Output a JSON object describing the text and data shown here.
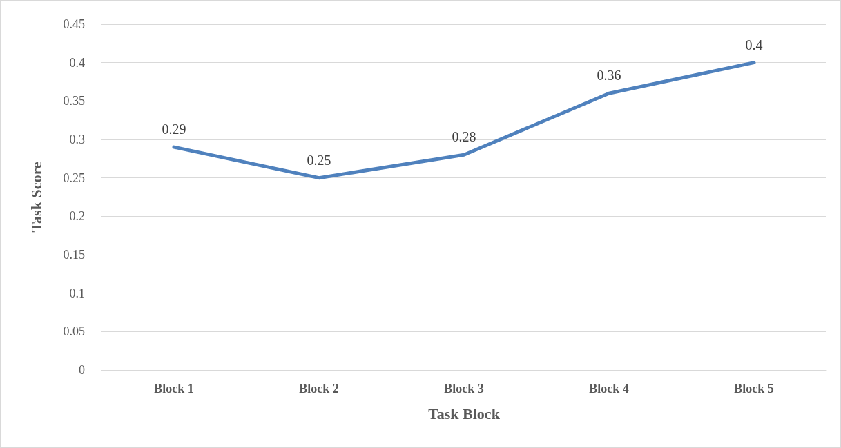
{
  "chart_data": {
    "type": "line",
    "xlabel": "Task Block",
    "ylabel": "Task Score",
    "categories": [
      "Block 1",
      "Block 2",
      "Block 3",
      "Block 4",
      "Block 5"
    ],
    "series": [
      {
        "color": "#4f81bd",
        "values": [
          0.29,
          0.25,
          0.28,
          0.36,
          0.4
        ]
      }
    ],
    "ylim": [
      0,
      0.45
    ],
    "yticks": [
      0,
      0.05,
      0.1,
      0.15,
      0.2,
      0.25,
      0.3,
      0.35,
      0.4,
      0.45
    ],
    "grid": "y",
    "marker": "none",
    "line_style": "solid",
    "data_labels": true
  }
}
